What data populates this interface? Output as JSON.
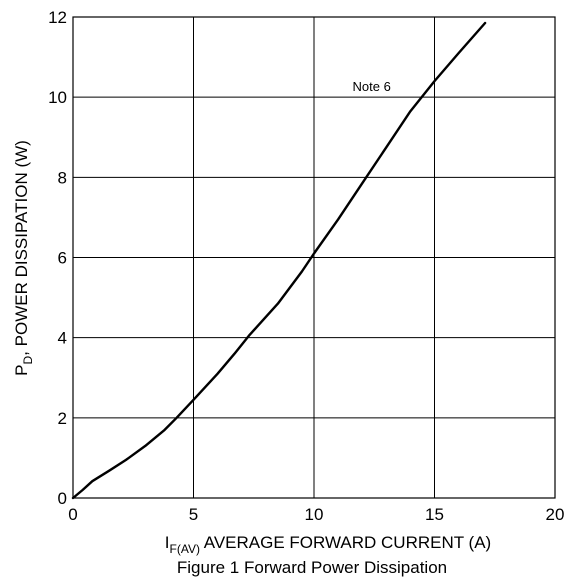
{
  "chart_data": {
    "type": "line",
    "caption": "Figure 1 Forward Power Dissipation",
    "xlabel": {
      "symbol": "I",
      "subscript": "F(AV)",
      "text": " AVERAGE FORWARD CURRENT (A)"
    },
    "ylabel": {
      "symbol": "P",
      "subscript": "D",
      "text": ", POWER DISSIPATION (W)"
    },
    "xlim": [
      0,
      20
    ],
    "ylim": [
      0,
      12
    ],
    "xticks": [
      0,
      5,
      10,
      15,
      20
    ],
    "yticks": [
      0,
      2,
      4,
      6,
      8,
      10,
      12
    ],
    "grid": true,
    "annotation": {
      "text": "Note 6",
      "x": 11.6,
      "y": 10.15
    },
    "series": [
      {
        "x": [
          0,
          0.4,
          0.8,
          1.5,
          2.2,
          3.0,
          3.8,
          4.3,
          5.0,
          6.0,
          6.7,
          7.3,
          8.5,
          9.5,
          10.0,
          11.0,
          12.0,
          13.0,
          14.0,
          15.0,
          16.0,
          17.1
        ],
        "y": [
          0,
          0.2,
          0.42,
          0.68,
          0.95,
          1.3,
          1.7,
          2.0,
          2.45,
          3.1,
          3.6,
          4.05,
          4.85,
          5.65,
          6.1,
          6.95,
          7.85,
          8.75,
          9.65,
          10.4,
          11.1,
          11.85
        ]
      }
    ],
    "colors": {
      "line": "#000000",
      "grid": "#000000",
      "background": "#ffffff"
    }
  }
}
